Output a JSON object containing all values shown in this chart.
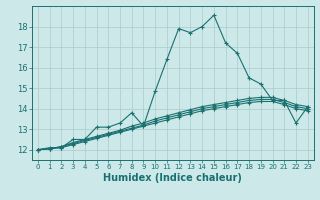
{
  "background_color": "#cce8e8",
  "grid_color": "#aacccc",
  "line_color": "#1a7070",
  "xlabel": "Humidex (Indice chaleur)",
  "xlim": [
    -0.5,
    23.5
  ],
  "ylim": [
    11.5,
    19.0
  ],
  "yticks": [
    12,
    13,
    14,
    15,
    16,
    17,
    18
  ],
  "xticks": [
    0,
    1,
    2,
    3,
    4,
    5,
    6,
    7,
    8,
    9,
    10,
    11,
    12,
    13,
    14,
    15,
    16,
    17,
    18,
    19,
    20,
    21,
    22,
    23
  ],
  "series": [
    {
      "x": [
        0,
        1,
        2,
        3,
        4,
        5,
        6,
        7,
        8,
        9,
        10,
        11,
        12,
        13,
        14,
        15,
        16,
        17,
        18,
        19,
        20,
        21,
        22,
        23
      ],
      "y": [
        12.0,
        12.1,
        12.1,
        12.5,
        12.5,
        13.1,
        13.1,
        13.3,
        13.8,
        13.15,
        14.85,
        16.4,
        17.9,
        17.7,
        18.0,
        18.55,
        17.2,
        16.7,
        15.5,
        15.2,
        14.4,
        14.4,
        13.3,
        14.1
      ]
    },
    {
      "x": [
        0,
        1,
        2,
        3,
        4,
        5,
        6,
        7,
        8,
        9,
        10,
        11,
        12,
        13,
        14,
        15,
        16,
        17,
        18,
        19,
        20,
        21,
        22,
        23
      ],
      "y": [
        12.0,
        12.05,
        12.15,
        12.35,
        12.5,
        12.65,
        12.8,
        12.95,
        13.15,
        13.3,
        13.5,
        13.65,
        13.8,
        13.95,
        14.1,
        14.2,
        14.3,
        14.4,
        14.5,
        14.55,
        14.55,
        14.4,
        14.2,
        14.1
      ]
    },
    {
      "x": [
        0,
        1,
        2,
        3,
        4,
        5,
        6,
        7,
        8,
        9,
        10,
        11,
        12,
        13,
        14,
        15,
        16,
        17,
        18,
        19,
        20,
        21,
        22,
        23
      ],
      "y": [
        12.0,
        12.05,
        12.15,
        12.3,
        12.45,
        12.6,
        12.75,
        12.9,
        13.05,
        13.2,
        13.4,
        13.55,
        13.7,
        13.85,
        14.0,
        14.1,
        14.2,
        14.3,
        14.4,
        14.45,
        14.45,
        14.3,
        14.1,
        14.0
      ]
    },
    {
      "x": [
        0,
        1,
        2,
        3,
        4,
        5,
        6,
        7,
        8,
        9,
        10,
        11,
        12,
        13,
        14,
        15,
        16,
        17,
        18,
        19,
        20,
        21,
        22,
        23
      ],
      "y": [
        12.0,
        12.05,
        12.1,
        12.25,
        12.4,
        12.55,
        12.7,
        12.85,
        13.0,
        13.15,
        13.3,
        13.45,
        13.6,
        13.75,
        13.9,
        14.0,
        14.1,
        14.2,
        14.3,
        14.35,
        14.35,
        14.2,
        14.0,
        13.9
      ]
    }
  ]
}
